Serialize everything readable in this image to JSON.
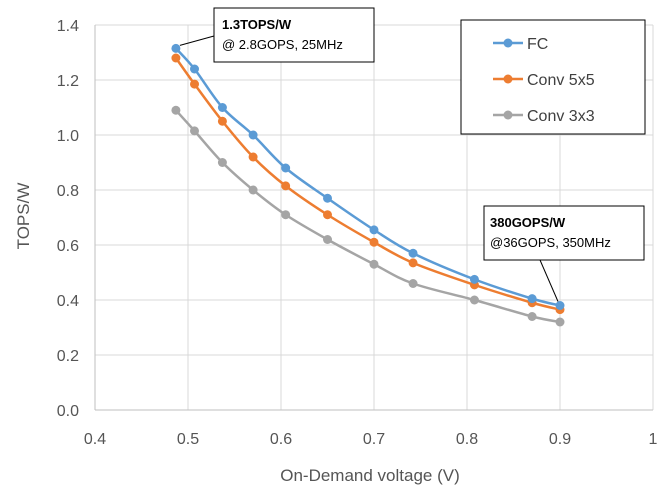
{
  "chart_data": {
    "type": "line",
    "xlabel": "On-Demand voltage (V)",
    "ylabel": "TOPS/W",
    "xlim": [
      0.4,
      1.0
    ],
    "ylim": [
      0,
      1.4
    ],
    "x_ticks": [
      "0.4",
      "0.5",
      "0.6",
      "0.7",
      "0.8",
      "0.9",
      "1"
    ],
    "y_ticks": [
      "0.0",
      "0.2",
      "0.4",
      "0.6",
      "0.8",
      "1.0",
      "1.2",
      "1.4"
    ],
    "grid": true,
    "legend_position": "top-right",
    "series": [
      {
        "name": "FC",
        "color": "#5b9bd5",
        "x": [
          0.487,
          0.507,
          0.537,
          0.57,
          0.605,
          0.65,
          0.7,
          0.742,
          0.808,
          0.87,
          0.9
        ],
        "y": [
          1.315,
          1.24,
          1.1,
          1.0,
          0.88,
          0.77,
          0.655,
          0.57,
          0.475,
          0.405,
          0.38
        ]
      },
      {
        "name": "Conv 5x5",
        "color": "#ed7d31",
        "x": [
          0.487,
          0.507,
          0.537,
          0.57,
          0.605,
          0.65,
          0.7,
          0.742,
          0.808,
          0.87,
          0.9
        ],
        "y": [
          1.28,
          1.185,
          1.05,
          0.92,
          0.815,
          0.71,
          0.61,
          0.535,
          0.455,
          0.39,
          0.365
        ]
      },
      {
        "name": "Conv 3x3",
        "color": "#a5a5a5",
        "x": [
          0.487,
          0.507,
          0.537,
          0.57,
          0.605,
          0.65,
          0.7,
          0.742,
          0.808,
          0.87,
          0.9
        ],
        "y": [
          1.09,
          1.015,
          0.9,
          0.8,
          0.71,
          0.62,
          0.53,
          0.46,
          0.4,
          0.34,
          0.32
        ]
      }
    ],
    "annotations": [
      {
        "bold": "1.3TOPS/W",
        "text": "@ 2.8GOPS, 25MHz",
        "x": 0.487,
        "y": 1.315
      },
      {
        "bold": "380GOPS/W",
        "text": "@36GOPS, 350MHz",
        "x": 0.9,
        "y": 0.38
      }
    ]
  }
}
